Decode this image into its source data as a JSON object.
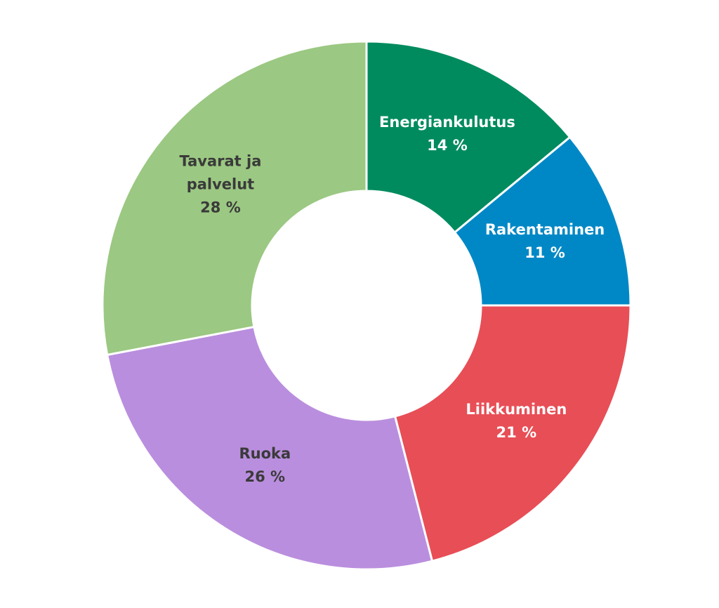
{
  "chart_data": {
    "type": "pie",
    "categories": [
      "Energiankulutus",
      "Rakentaminen",
      "Liikkuminen",
      "Ruoka",
      "Tavarat ja palvelut"
    ],
    "values": [
      14,
      11,
      21,
      26,
      28
    ],
    "value_labels": [
      "14 %",
      "11 %",
      "21 %",
      "26 %",
      "28 %"
    ],
    "colors": [
      "#008b5f",
      "#0088c6",
      "#e84e56",
      "#ba8ede",
      "#9bc882"
    ]
  }
}
